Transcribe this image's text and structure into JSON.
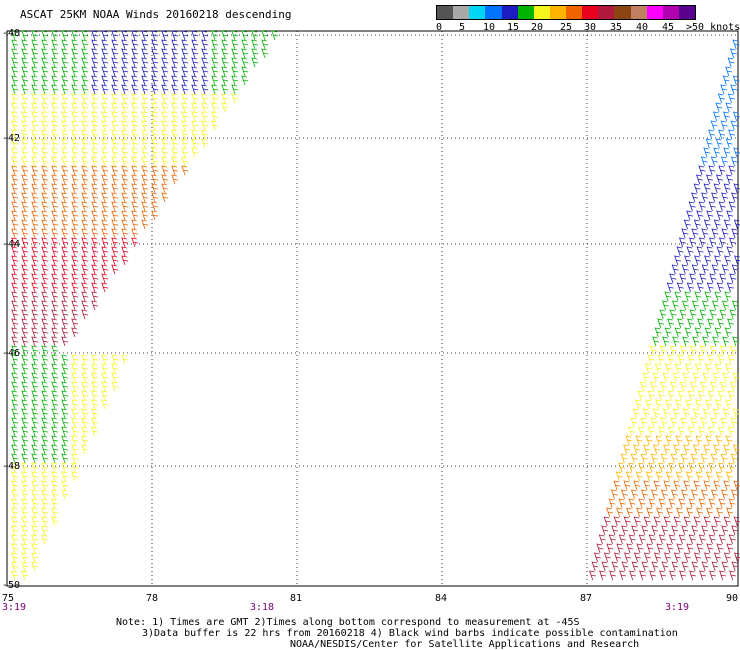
{
  "title": "ASCAT 25KM NOAA Winds 20160218 descending",
  "legend": {
    "labels": [
      "0",
      "5",
      "10",
      "15",
      "20",
      "25",
      "30",
      "35",
      "40",
      "45",
      ">50 knots"
    ],
    "colors": [
      "#555555",
      "#a9a9a9",
      "#00d5f5",
      "#0074ff",
      "#1c1cc0",
      "#00b400",
      "#f5f51e",
      "#ffb400",
      "#f06400",
      "#e8001e",
      "#b0193c",
      "#8b4513",
      "#c08060",
      "#ff00ff",
      "#b000b0",
      "#5a0090"
    ]
  },
  "map": {
    "x_ticks": [
      "75",
      "78",
      "81",
      "84",
      "87",
      "90"
    ],
    "y_ticks": [
      "-40",
      "-42",
      "-44",
      "-46",
      "-48",
      "-50"
    ],
    "time_labels": [
      "3:19",
      "3:18",
      "3:19"
    ]
  },
  "notes": {
    "line1": "Note: 1) Times are GMT 2)Times along bottom correspond to measurement at -45S",
    "line2": "3)Data buffer is 22 hrs from 20160218 4) Black wind barbs indicate possible contamination",
    "line3": "NOAA/NESDIS/Center for Satellite Applications and Research"
  }
}
